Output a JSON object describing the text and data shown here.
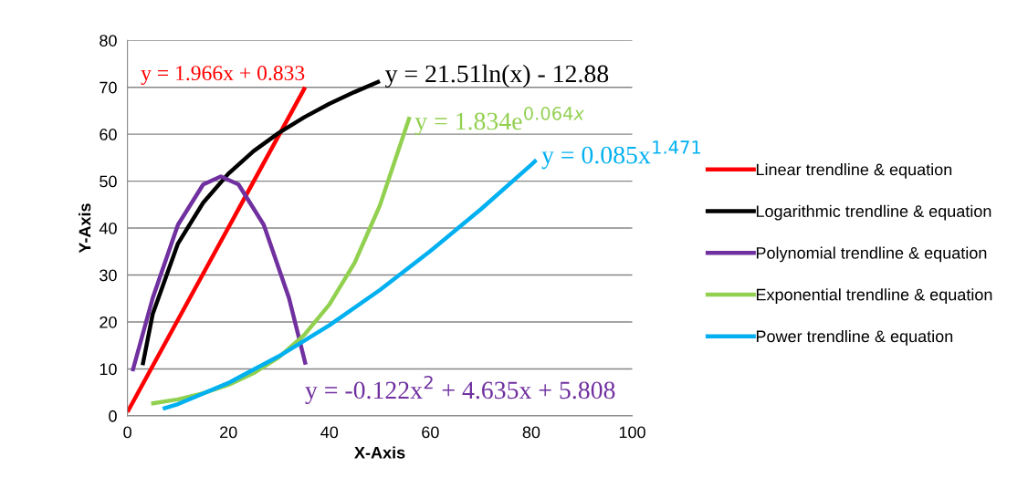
{
  "chart_data": {
    "type": "line",
    "xlabel": "X-Axis",
    "ylabel": "Y-Axis",
    "xlim": [
      0,
      100
    ],
    "xticks": [
      0,
      20,
      40,
      60,
      80,
      100
    ],
    "ylim": [
      0,
      80
    ],
    "yticks": [
      0,
      10,
      20,
      30,
      40,
      50,
      60,
      70,
      80
    ],
    "grid": "y",
    "legend": "right",
    "marker": "none",
    "line_style": "solid",
    "series": [
      {
        "name": "Linear trendline & equation",
        "color": "#ff0000",
        "x": [
          0,
          35.2
        ],
        "values": [
          0.8,
          70
        ]
      },
      {
        "name": "Logarithmic trendline & equation",
        "color": "#000000",
        "x": [
          3,
          5,
          10,
          15,
          20,
          25,
          30,
          35,
          40,
          45,
          50
        ],
        "values": [
          10.8,
          21.7,
          36.7,
          45.4,
          51.6,
          56.4,
          60.3,
          63.6,
          66.5,
          69,
          71.3
        ]
      },
      {
        "name": "Polynomial trendline & equation",
        "color": "#7030a0",
        "x": [
          1,
          5,
          10,
          15,
          18.5,
          22,
          27,
          32,
          35.3
        ],
        "values": [
          9.5,
          25.1,
          40.7,
          49.3,
          51,
          49.3,
          40.7,
          25.1,
          10.9
        ]
      },
      {
        "name": "Exponential trendline & equation",
        "color": "#92d050",
        "x": [
          4.7,
          10,
          15,
          20,
          25,
          30,
          35,
          40,
          45,
          50,
          55.9
        ],
        "values": [
          2.6,
          3.5,
          4.8,
          6.6,
          9.1,
          12.5,
          17.2,
          23.7,
          32.6,
          44.8,
          63.7
        ]
      },
      {
        "name": "Power trendline & equation",
        "color": "#00b0f0",
        "x": [
          7,
          10,
          20,
          30,
          40,
          50,
          60,
          70,
          80,
          81
        ],
        "values": [
          1.5,
          2.5,
          7,
          12.7,
          19.3,
          26.8,
          35.1,
          44,
          53.5,
          54.5
        ]
      }
    ],
    "annotations": [
      "y = 1.966x + 0.833",
      "y = 21.51ln(x) - 12.88",
      "y = -0.122x$^{2}$ + 4.635x + 5.808",
      "y = 1.834e$^{0.064x}$",
      "y = 0.085x$^{1.471}$"
    ]
  }
}
